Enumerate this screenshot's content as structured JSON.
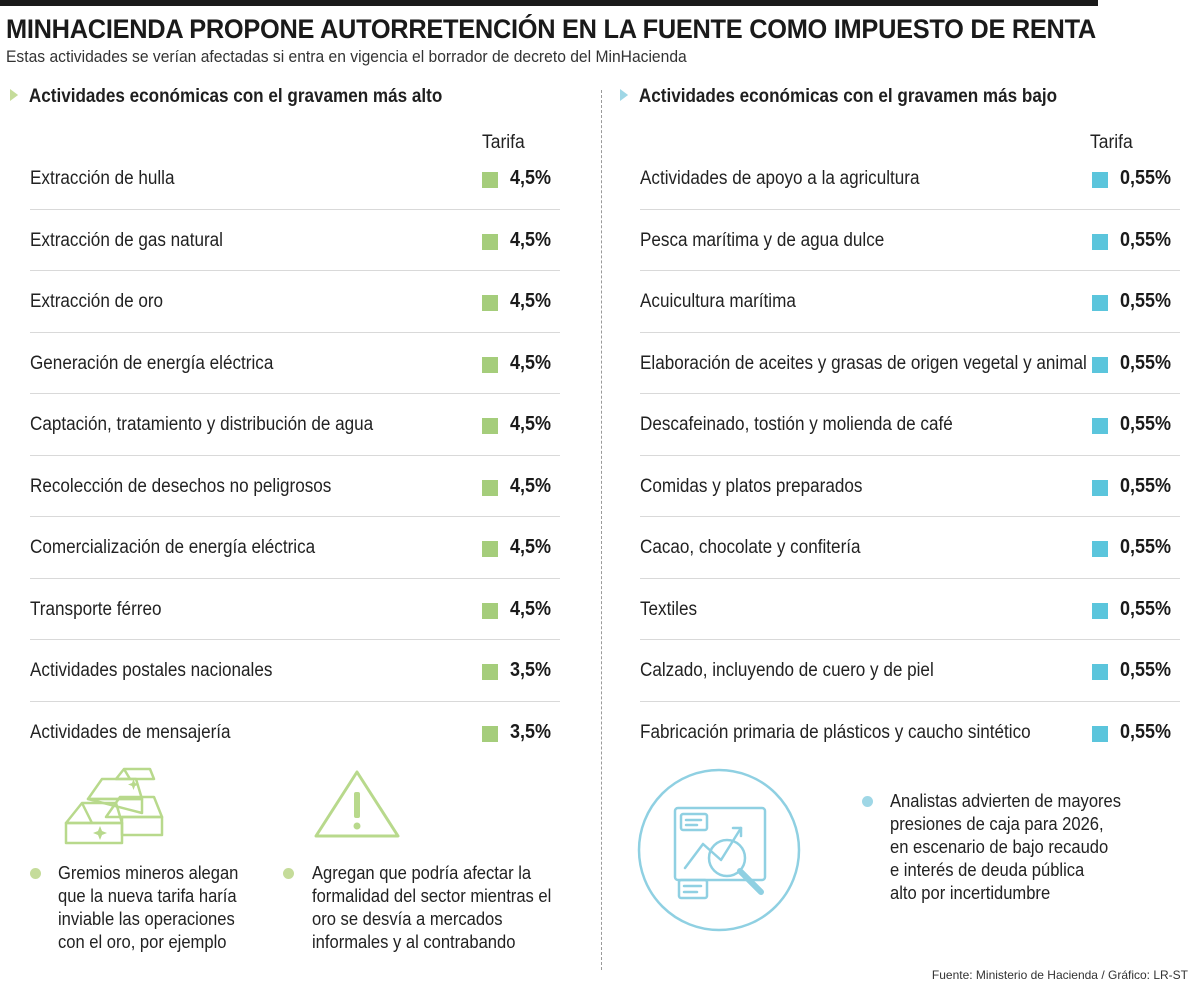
{
  "title": "MINHACIENDA PROPONE AUTORRETENCIÓN EN LA FUENTE COMO IMPUESTO DE RENTA",
  "subtitle": "Estas actividades se verían afectadas si entra en vigencia el borrador de decreto del MinHacienda",
  "left": {
    "heading": "Actividades económicas con el gravamen más alto",
    "column_label": "Tarifa",
    "accent": "#a5cd7b",
    "rows": [
      {
        "label": "Extracción de hulla",
        "value": "4,5%"
      },
      {
        "label": "Extracción de gas natural",
        "value": "4,5%"
      },
      {
        "label": "Extracción de oro",
        "value": "4,5%"
      },
      {
        "label": "Generación de energía eléctrica",
        "value": "4,5%"
      },
      {
        "label": "Captación, tratamiento y distribución de agua",
        "value": "4,5%"
      },
      {
        "label": "Recolección de desechos no peligrosos",
        "value": "4,5%"
      },
      {
        "label": "Comercialización de energía eléctrica",
        "value": "4,5%"
      },
      {
        "label": "Transporte férreo",
        "value": "4,5%"
      },
      {
        "label": "Actividades postales nacionales",
        "value": "3,5%"
      },
      {
        "label": "Actividades de mensajería",
        "value": "3,5%"
      }
    ]
  },
  "right": {
    "heading": "Actividades económicas con el gravamen más bajo",
    "column_label": "Tarifa",
    "accent": "#5bc5dc",
    "rows": [
      {
        "label": "Actividades de apoyo a la agricultura",
        "value": "0,55%"
      },
      {
        "label": "Pesca marítima y de agua dulce",
        "value": "0,55%"
      },
      {
        "label": "Acuicultura marítima",
        "value": "0,55%"
      },
      {
        "label": "Elaboración de aceites y grasas de origen vegetal y animal",
        "value": "0,55%"
      },
      {
        "label": "Descafeinado, tostión y molienda de café",
        "value": "0,55%"
      },
      {
        "label": "Comidas y platos preparados",
        "value": "0,55%"
      },
      {
        "label": "Cacao, chocolate y confitería",
        "value": "0,55%"
      },
      {
        "label": "Textiles",
        "value": "0,55%"
      },
      {
        "label": "Calzado, incluyendo de cuero y de piel",
        "value": "0,55%"
      },
      {
        "label": "Fabricación primaria de plásticos y caucho sintético",
        "value": "0,55%"
      }
    ]
  },
  "notes": {
    "note1": [
      "Gremios mineros alegan",
      "que la nueva tarifa haría",
      "inviable las operaciones",
      "con el oro, por ejemplo"
    ],
    "note2": [
      "Agregan que podría afectar la",
      "formalidad del sector mientras el",
      "oro se desvía a mercados",
      "informales y al contrabando"
    ],
    "note3": [
      "Analistas advierten de mayores",
      "presiones de caja para 2026,",
      "en escenario de bajo recaudo",
      "e interés de deuda pública",
      "alto por incertidumbre"
    ]
  },
  "icons": {
    "gold": "gold-bars-icon",
    "warning": "warning-triangle-icon",
    "analysis": "chart-magnifier-icon"
  },
  "source": "Fuente: Ministerio de Hacienda / Gráfico: LR-ST"
}
